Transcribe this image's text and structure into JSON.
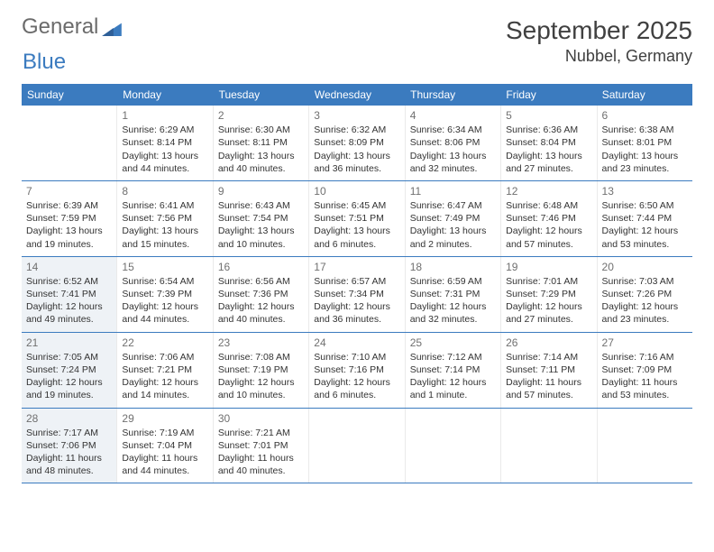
{
  "brand": {
    "word1": "General",
    "word2": "Blue"
  },
  "title": "September 2025",
  "location": "Nubbel, Germany",
  "colors": {
    "header_bg": "#3b7bbf",
    "header_text": "#ffffff",
    "rule": "#3b7bbf",
    "text": "#333333",
    "muted": "#707070",
    "highlight_bg": "#eef2f6"
  },
  "daynames": [
    "Sunday",
    "Monday",
    "Tuesday",
    "Wednesday",
    "Thursday",
    "Friday",
    "Saturday"
  ],
  "weeks": [
    [
      {
        "empty": true
      },
      {
        "n": "1",
        "sr": "Sunrise: 6:29 AM",
        "ss": "Sunset: 8:14 PM",
        "dl": "Daylight: 13 hours and 44 minutes."
      },
      {
        "n": "2",
        "sr": "Sunrise: 6:30 AM",
        "ss": "Sunset: 8:11 PM",
        "dl": "Daylight: 13 hours and 40 minutes."
      },
      {
        "n": "3",
        "sr": "Sunrise: 6:32 AM",
        "ss": "Sunset: 8:09 PM",
        "dl": "Daylight: 13 hours and 36 minutes."
      },
      {
        "n": "4",
        "sr": "Sunrise: 6:34 AM",
        "ss": "Sunset: 8:06 PM",
        "dl": "Daylight: 13 hours and 32 minutes."
      },
      {
        "n": "5",
        "sr": "Sunrise: 6:36 AM",
        "ss": "Sunset: 8:04 PM",
        "dl": "Daylight: 13 hours and 27 minutes."
      },
      {
        "n": "6",
        "sr": "Sunrise: 6:38 AM",
        "ss": "Sunset: 8:01 PM",
        "dl": "Daylight: 13 hours and 23 minutes."
      }
    ],
    [
      {
        "n": "7",
        "sr": "Sunrise: 6:39 AM",
        "ss": "Sunset: 7:59 PM",
        "dl": "Daylight: 13 hours and 19 minutes."
      },
      {
        "n": "8",
        "sr": "Sunrise: 6:41 AM",
        "ss": "Sunset: 7:56 PM",
        "dl": "Daylight: 13 hours and 15 minutes."
      },
      {
        "n": "9",
        "sr": "Sunrise: 6:43 AM",
        "ss": "Sunset: 7:54 PM",
        "dl": "Daylight: 13 hours and 10 minutes."
      },
      {
        "n": "10",
        "sr": "Sunrise: 6:45 AM",
        "ss": "Sunset: 7:51 PM",
        "dl": "Daylight: 13 hours and 6 minutes."
      },
      {
        "n": "11",
        "sr": "Sunrise: 6:47 AM",
        "ss": "Sunset: 7:49 PM",
        "dl": "Daylight: 13 hours and 2 minutes."
      },
      {
        "n": "12",
        "sr": "Sunrise: 6:48 AM",
        "ss": "Sunset: 7:46 PM",
        "dl": "Daylight: 12 hours and 57 minutes."
      },
      {
        "n": "13",
        "sr": "Sunrise: 6:50 AM",
        "ss": "Sunset: 7:44 PM",
        "dl": "Daylight: 12 hours and 53 minutes."
      }
    ],
    [
      {
        "n": "14",
        "hl": true,
        "sr": "Sunrise: 6:52 AM",
        "ss": "Sunset: 7:41 PM",
        "dl": "Daylight: 12 hours and 49 minutes."
      },
      {
        "n": "15",
        "sr": "Sunrise: 6:54 AM",
        "ss": "Sunset: 7:39 PM",
        "dl": "Daylight: 12 hours and 44 minutes."
      },
      {
        "n": "16",
        "sr": "Sunrise: 6:56 AM",
        "ss": "Sunset: 7:36 PM",
        "dl": "Daylight: 12 hours and 40 minutes."
      },
      {
        "n": "17",
        "sr": "Sunrise: 6:57 AM",
        "ss": "Sunset: 7:34 PM",
        "dl": "Daylight: 12 hours and 36 minutes."
      },
      {
        "n": "18",
        "sr": "Sunrise: 6:59 AM",
        "ss": "Sunset: 7:31 PM",
        "dl": "Daylight: 12 hours and 32 minutes."
      },
      {
        "n": "19",
        "sr": "Sunrise: 7:01 AM",
        "ss": "Sunset: 7:29 PM",
        "dl": "Daylight: 12 hours and 27 minutes."
      },
      {
        "n": "20",
        "sr": "Sunrise: 7:03 AM",
        "ss": "Sunset: 7:26 PM",
        "dl": "Daylight: 12 hours and 23 minutes."
      }
    ],
    [
      {
        "n": "21",
        "hl": true,
        "sr": "Sunrise: 7:05 AM",
        "ss": "Sunset: 7:24 PM",
        "dl": "Daylight: 12 hours and 19 minutes."
      },
      {
        "n": "22",
        "sr": "Sunrise: 7:06 AM",
        "ss": "Sunset: 7:21 PM",
        "dl": "Daylight: 12 hours and 14 minutes."
      },
      {
        "n": "23",
        "sr": "Sunrise: 7:08 AM",
        "ss": "Sunset: 7:19 PM",
        "dl": "Daylight: 12 hours and 10 minutes."
      },
      {
        "n": "24",
        "sr": "Sunrise: 7:10 AM",
        "ss": "Sunset: 7:16 PM",
        "dl": "Daylight: 12 hours and 6 minutes."
      },
      {
        "n": "25",
        "sr": "Sunrise: 7:12 AM",
        "ss": "Sunset: 7:14 PM",
        "dl": "Daylight: 12 hours and 1 minute."
      },
      {
        "n": "26",
        "sr": "Sunrise: 7:14 AM",
        "ss": "Sunset: 7:11 PM",
        "dl": "Daylight: 11 hours and 57 minutes."
      },
      {
        "n": "27",
        "sr": "Sunrise: 7:16 AM",
        "ss": "Sunset: 7:09 PM",
        "dl": "Daylight: 11 hours and 53 minutes."
      }
    ],
    [
      {
        "n": "28",
        "hl": true,
        "sr": "Sunrise: 7:17 AM",
        "ss": "Sunset: 7:06 PM",
        "dl": "Daylight: 11 hours and 48 minutes."
      },
      {
        "n": "29",
        "sr": "Sunrise: 7:19 AM",
        "ss": "Sunset: 7:04 PM",
        "dl": "Daylight: 11 hours and 44 minutes."
      },
      {
        "n": "30",
        "sr": "Sunrise: 7:21 AM",
        "ss": "Sunset: 7:01 PM",
        "dl": "Daylight: 11 hours and 40 minutes."
      },
      {
        "empty": true
      },
      {
        "empty": true
      },
      {
        "empty": true
      },
      {
        "empty": true
      }
    ]
  ]
}
